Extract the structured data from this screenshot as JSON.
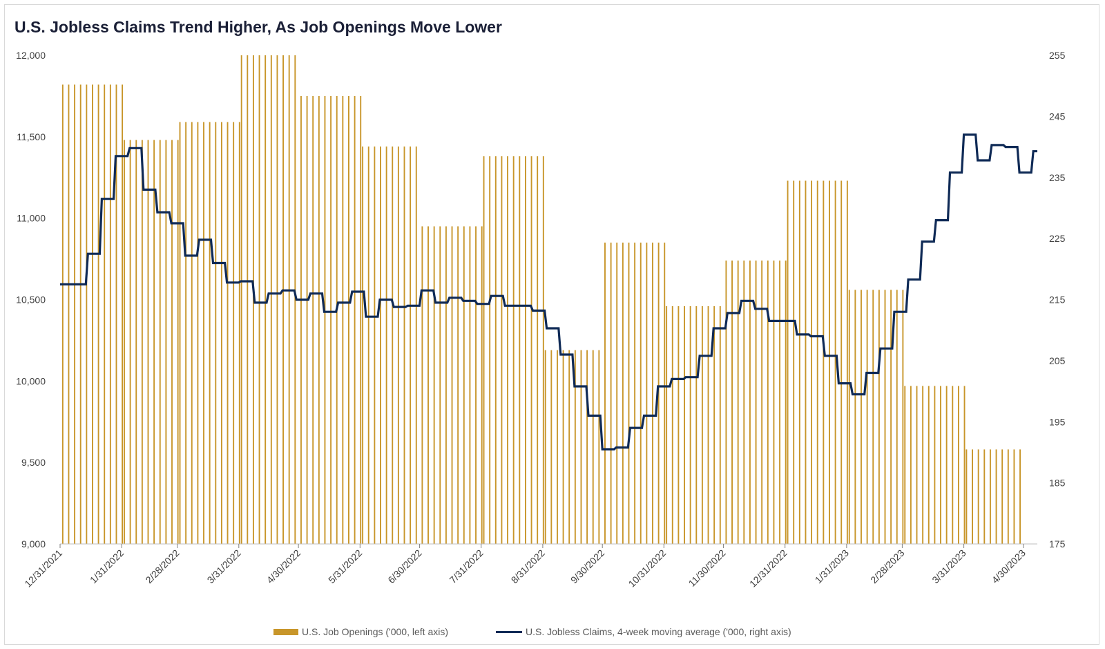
{
  "chart_data": {
    "type": "bar",
    "title": "U.S. Jobless Claims Trend Higher, As Job Openings Move Lower",
    "left_axis": {
      "min": 9000,
      "max": 12000,
      "ticks": [
        "12,000",
        "11,500",
        "11,000",
        "10,500",
        "10,000",
        "9,500",
        "9,000"
      ]
    },
    "right_axis": {
      "min": 175,
      "max": 255,
      "ticks": [
        "255",
        "245",
        "235",
        "225",
        "215",
        "205",
        "195",
        "185",
        "175"
      ]
    },
    "x_tick_labels": [
      "12/31/2021",
      "1/31/2022",
      "2/28/2022",
      "3/31/2022",
      "4/30/2022",
      "5/31/2022",
      "6/30/2022",
      "7/31/2022",
      "8/31/2022",
      "9/30/2022",
      "10/31/2022",
      "11/30/2022",
      "12/31/2022",
      "1/31/2023",
      "2/28/2023",
      "3/31/2023",
      "4/30/2023"
    ],
    "x_range": [
      "2021-12-31",
      "2023-05-07"
    ],
    "series": [
      {
        "name": "U.S. Job Openings ('000, left axis)",
        "type": "bar",
        "color": "#c8962a",
        "months": [
          "2022-01",
          "2022-02",
          "2022-03",
          "2022-04",
          "2022-05",
          "2022-06",
          "2022-07",
          "2022-08",
          "2022-09",
          "2022-10",
          "2022-11",
          "2022-12",
          "2023-01",
          "2023-02",
          "2023-03",
          "2023-04"
        ],
        "values": [
          11820,
          11480,
          11590,
          12000,
          11750,
          11440,
          10950,
          11380,
          10190,
          10850,
          10460,
          10740,
          11230,
          10560,
          9970,
          9580
        ]
      },
      {
        "name": "U.S. Jobless Claims, 4-week moving average ('000, right axis)",
        "type": "line",
        "color": "#0f2a56",
        "values": [
          [
            "2021-12-31",
            217.5
          ],
          [
            "2022-01-07",
            217.5
          ],
          [
            "2022-01-14",
            222.5
          ],
          [
            "2022-01-21",
            231.5
          ],
          [
            "2022-01-28",
            238.5
          ],
          [
            "2022-02-04",
            239.8
          ],
          [
            "2022-02-11",
            233.0
          ],
          [
            "2022-02-18",
            229.3
          ],
          [
            "2022-02-25",
            227.5
          ],
          [
            "2022-03-04",
            222.2
          ],
          [
            "2022-03-11",
            224.8
          ],
          [
            "2022-03-18",
            221.0
          ],
          [
            "2022-03-25",
            217.8
          ],
          [
            "2022-04-01",
            218.0
          ],
          [
            "2022-04-08",
            214.5
          ],
          [
            "2022-04-15",
            216.0
          ],
          [
            "2022-04-22",
            216.5
          ],
          [
            "2022-04-29",
            215.0
          ],
          [
            "2022-05-06",
            216.0
          ],
          [
            "2022-05-13",
            213.0
          ],
          [
            "2022-05-20",
            214.5
          ],
          [
            "2022-05-27",
            216.3
          ],
          [
            "2022-06-03",
            212.2
          ],
          [
            "2022-06-10",
            215.0
          ],
          [
            "2022-06-17",
            213.8
          ],
          [
            "2022-06-24",
            214.0
          ],
          [
            "2022-07-01",
            216.5
          ],
          [
            "2022-07-08",
            214.5
          ],
          [
            "2022-07-15",
            215.3
          ],
          [
            "2022-07-22",
            214.8
          ],
          [
            "2022-07-29",
            214.3
          ],
          [
            "2022-08-05",
            215.6
          ],
          [
            "2022-08-12",
            214.0
          ],
          [
            "2022-08-19",
            214.0
          ],
          [
            "2022-08-26",
            213.2
          ],
          [
            "2022-09-02",
            210.3
          ],
          [
            "2022-09-09",
            206.0
          ],
          [
            "2022-09-16",
            200.8
          ],
          [
            "2022-09-23",
            196.0
          ],
          [
            "2022-09-30",
            190.5
          ],
          [
            "2022-10-07",
            190.8
          ],
          [
            "2022-10-14",
            194.0
          ],
          [
            "2022-10-21",
            196.0
          ],
          [
            "2022-10-28",
            200.8
          ],
          [
            "2022-11-04",
            202.0
          ],
          [
            "2022-11-11",
            202.3
          ],
          [
            "2022-11-18",
            205.8
          ],
          [
            "2022-11-25",
            210.3
          ],
          [
            "2022-12-02",
            212.8
          ],
          [
            "2022-12-09",
            214.8
          ],
          [
            "2022-12-16",
            213.5
          ],
          [
            "2022-12-23",
            211.5
          ],
          [
            "2022-12-30",
            211.5
          ],
          [
            "2023-01-06",
            209.3
          ],
          [
            "2023-01-13",
            209.0
          ],
          [
            "2023-01-20",
            205.8
          ],
          [
            "2023-01-27",
            201.3
          ],
          [
            "2023-02-03",
            199.5
          ],
          [
            "2023-02-10",
            203.0
          ],
          [
            "2023-02-17",
            207.0
          ],
          [
            "2023-02-24",
            213.0
          ],
          [
            "2023-03-03",
            218.3
          ],
          [
            "2023-03-10",
            224.5
          ],
          [
            "2023-03-17",
            228.0
          ],
          [
            "2023-03-24",
            235.8
          ],
          [
            "2023-03-31",
            242.0
          ],
          [
            "2023-04-07",
            237.8
          ],
          [
            "2023-04-14",
            240.3
          ],
          [
            "2023-04-21",
            240.0
          ],
          [
            "2023-04-28",
            235.8
          ],
          [
            "2023-05-05",
            239.3
          ]
        ]
      }
    ],
    "legend_position": "bottom",
    "grid": false
  }
}
